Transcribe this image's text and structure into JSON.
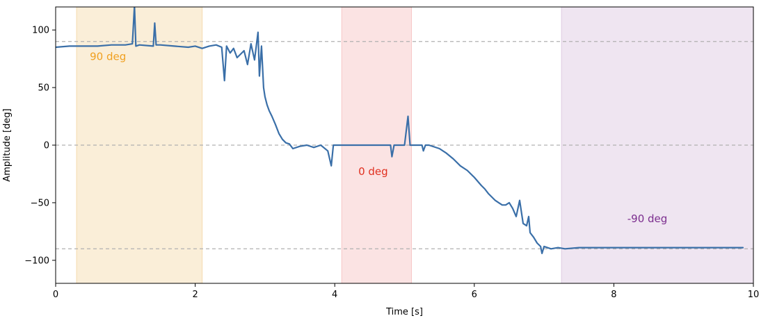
{
  "chart_data": {
    "type": "line",
    "title": "",
    "xlabel": "Time [s]",
    "ylabel": "Amplitude [deg]",
    "xlim": [
      0,
      10
    ],
    "ylim": [
      -120,
      120
    ],
    "x_ticks": [
      0,
      2,
      4,
      6,
      8,
      10
    ],
    "x_tick_labels": [
      "0",
      "2",
      "4",
      "6",
      "8",
      "10"
    ],
    "y_ticks": [
      -100,
      -50,
      0,
      50,
      100
    ],
    "y_tick_labels": [
      "−100",
      "−50",
      "0",
      "50",
      "100"
    ],
    "grid": false,
    "reference_lines": [
      {
        "y": 90,
        "style": "dashed",
        "color": "#b0b0b0"
      },
      {
        "y": 0,
        "style": "dashed",
        "color": "#b0b0b0"
      },
      {
        "y": -90,
        "style": "dashed",
        "color": "#b0b0b0"
      }
    ],
    "bands": [
      {
        "x_start": 0.3,
        "x_end": 2.1,
        "color": "#f5d9a8",
        "label": "90 deg",
        "label_color": "#f0a020",
        "label_x": 0.75,
        "label_y": 74
      },
      {
        "x_start": 4.1,
        "x_end": 5.1,
        "color": "#f6c2c2",
        "label": "0 deg",
        "label_color": "#e03020",
        "label_x": 4.55,
        "label_y": -26
      },
      {
        "x_start": 7.25,
        "x_end": 10.0,
        "color": "#dcc6e0",
        "label": "-90 deg",
        "label_color": "#7b2d8e",
        "label_x": 8.48,
        "label_y": -67
      }
    ],
    "series": [
      {
        "color": "#3a6fa8",
        "x": [
          0.0,
          0.2,
          0.4,
          0.6,
          0.8,
          1.0,
          1.1,
          1.13,
          1.15,
          1.2,
          1.4,
          1.42,
          1.44,
          1.5,
          1.7,
          1.9,
          2.0,
          2.1,
          2.2,
          2.3,
          2.38,
          2.42,
          2.45,
          2.5,
          2.55,
          2.6,
          2.7,
          2.75,
          2.8,
          2.85,
          2.9,
          2.92,
          2.95,
          2.98,
          3.0,
          3.03,
          3.06,
          3.1,
          3.15,
          3.2,
          3.25,
          3.3,
          3.35,
          3.4,
          3.5,
          3.6,
          3.7,
          3.8,
          3.9,
          3.95,
          3.98,
          4.0,
          4.1,
          4.3,
          4.5,
          4.7,
          4.8,
          4.82,
          4.85,
          5.0,
          5.05,
          5.08,
          5.1,
          5.2,
          5.25,
          5.27,
          5.3,
          5.35,
          5.5,
          5.6,
          5.7,
          5.8,
          5.9,
          6.0,
          6.1,
          6.15,
          6.2,
          6.25,
          6.3,
          6.35,
          6.4,
          6.45,
          6.5,
          6.55,
          6.6,
          6.65,
          6.7,
          6.75,
          6.78,
          6.8,
          6.85,
          6.9,
          6.95,
          6.97,
          7.0,
          7.1,
          7.2,
          7.3,
          7.5,
          8.0,
          8.5,
          9.0,
          9.5,
          9.85
        ],
        "y": [
          85,
          86,
          86,
          86,
          87,
          87,
          88,
          121,
          86,
          87,
          86,
          106,
          87,
          87,
          86,
          85,
          86,
          84,
          86,
          87,
          85,
          56,
          86,
          80,
          84,
          76,
          82,
          70,
          88,
          74,
          98,
          60,
          86,
          50,
          42,
          35,
          30,
          25,
          18,
          10,
          5,
          2,
          1,
          -3,
          -1,
          0,
          -2,
          0,
          -5,
          -18,
          0,
          0,
          0,
          0,
          0,
          0,
          0,
          -10,
          0,
          0,
          25,
          0,
          0,
          0,
          0,
          -5,
          0,
          0,
          -3,
          -7,
          -12,
          -18,
          -22,
          -28,
          -35,
          -38,
          -42,
          -45,
          -48,
          -50,
          -52,
          -52,
          -50,
          -55,
          -62,
          -48,
          -68,
          -70,
          -62,
          -76,
          -80,
          -85,
          -88,
          -94,
          -88,
          -90,
          -89,
          -90,
          -89,
          -89,
          -89,
          -89,
          -89,
          -89
        ]
      }
    ]
  }
}
